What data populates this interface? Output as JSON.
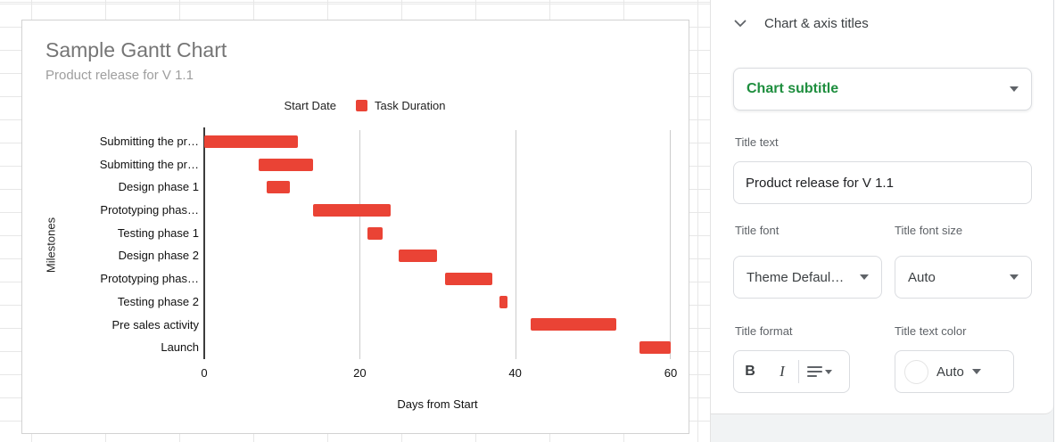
{
  "chart_data": {
    "type": "bar",
    "orientation": "horizontal",
    "variant": "gantt",
    "title": "Sample Gantt Chart",
    "subtitle": "Product release for V 1.1",
    "xlabel": "Days from Start",
    "ylabel": "Milestones",
    "xlim": [
      0,
      60
    ],
    "xticks": [
      0,
      20,
      40,
      60
    ],
    "grid": "vertical",
    "legend_position": "top",
    "bar_color": "#ea4335",
    "legend": [
      {
        "name": "Start Date",
        "color": "#ffffff"
      },
      {
        "name": "Task Duration",
        "color": "#ea4335"
      }
    ],
    "categories": [
      "Submitting the pr…",
      "Submitting the pr…",
      "Design phase 1",
      "Prototyping phas…",
      "Testing phase 1",
      "Design phase 2",
      "Prototyping phas…",
      "Testing phase 2",
      "Pre sales activity",
      "Launch"
    ],
    "series": [
      {
        "name": "Start Date",
        "role": "start-offset",
        "values": [
          0,
          7,
          8,
          14,
          21,
          25,
          31,
          38,
          42,
          56
        ]
      },
      {
        "name": "Task Duration",
        "role": "duration",
        "values": [
          12,
          7,
          3,
          10,
          2,
          5,
          6,
          1,
          11,
          4
        ]
      }
    ]
  },
  "panel": {
    "header": {
      "label": "Chart & axis titles"
    },
    "section_dropdown": {
      "value": "Chart subtitle",
      "accent_color": "#1e8e3e"
    },
    "fields": {
      "title_text": {
        "label": "Title text",
        "value": "Product release for V 1.1"
      },
      "title_font": {
        "label": "Title font",
        "value": "Theme Defaul…"
      },
      "title_font_size": {
        "label": "Title font size",
        "value": "Auto"
      },
      "title_format": {
        "label": "Title format",
        "bold_label": "B",
        "italic_label": "I"
      },
      "title_text_color": {
        "label": "Title text color",
        "value": "Auto"
      }
    }
  }
}
